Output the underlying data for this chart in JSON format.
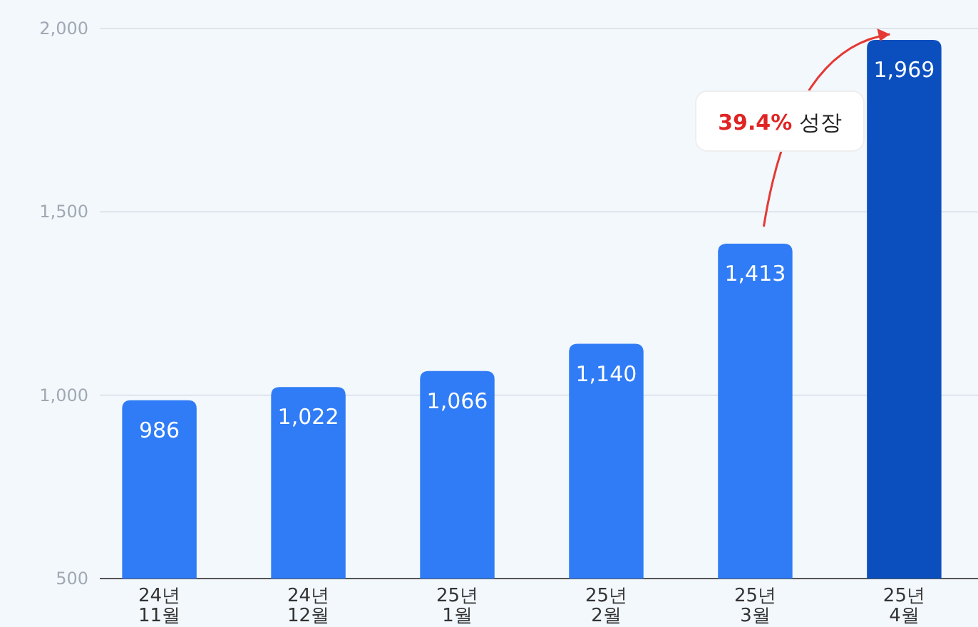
{
  "chart_data": {
    "type": "bar",
    "categories": [
      "24년\n11월",
      "24년\n12월",
      "25년\n1월",
      "25년\n2월",
      "25년\n3월",
      "25년\n4월"
    ],
    "values": [
      986,
      1022,
      1066,
      1140,
      1413,
      1969
    ],
    "colors": [
      "#2f7cf6",
      "#2f7cf6",
      "#2f7cf6",
      "#2f7cf6",
      "#2f7cf6",
      "#0b4fbf"
    ],
    "ylim": [
      500,
      2000
    ],
    "yticks": [
      {
        "value": 500,
        "label": "500"
      },
      {
        "value": 1000,
        "label": "1,000"
      },
      {
        "value": 1500,
        "label": "1,500"
      },
      {
        "value": 2000,
        "label": "2,000"
      }
    ],
    "grid": "y",
    "value_labels": [
      "986",
      "1,022",
      "1,066",
      "1,140",
      "1,413",
      "1,969"
    ],
    "annotations": [
      "39.4% 성장"
    ]
  }
}
